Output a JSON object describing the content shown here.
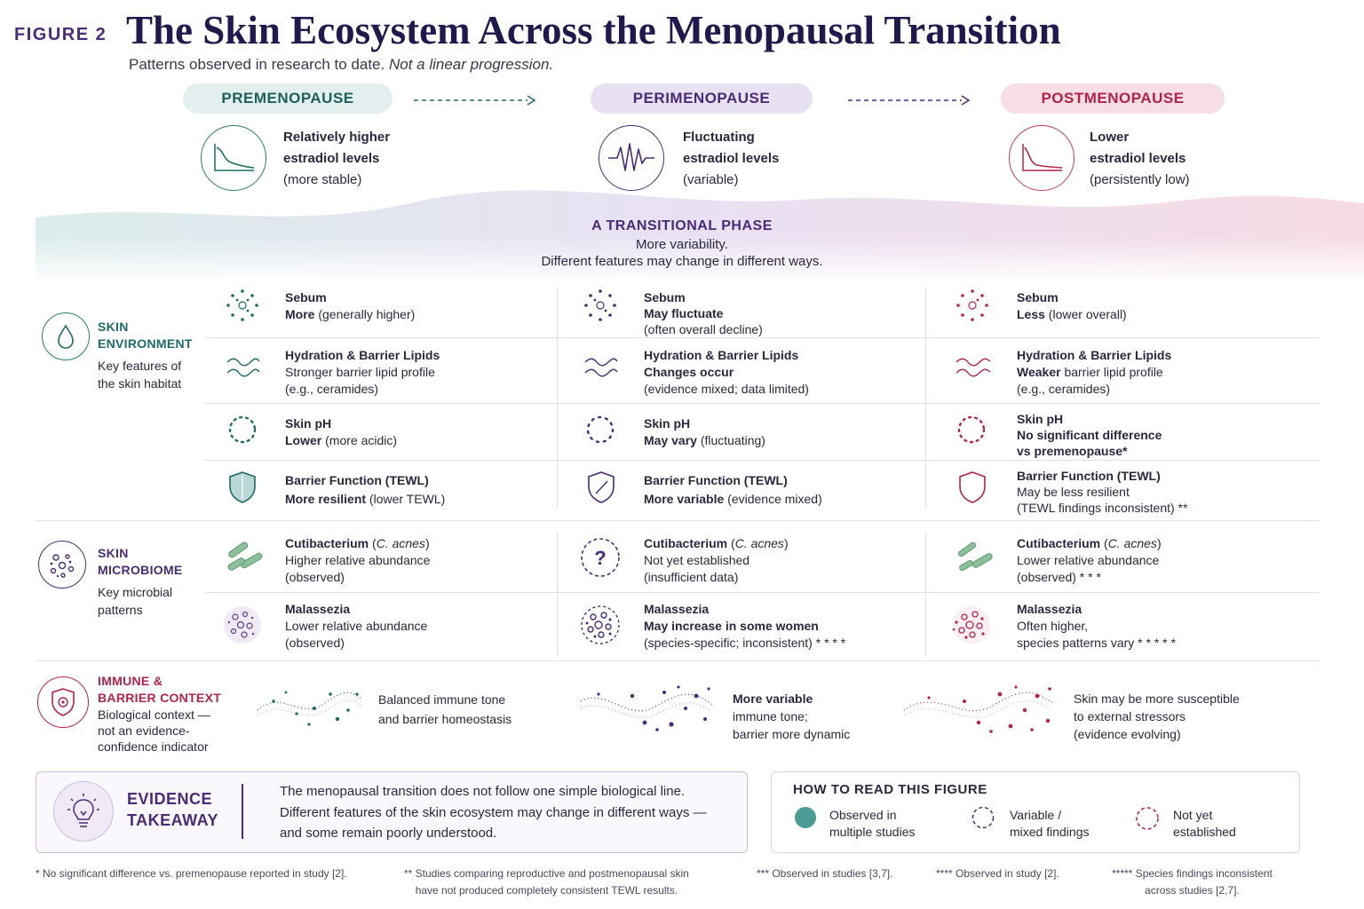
{
  "header": {
    "figure_label": "FIGURE 2",
    "title": "The Skin Ecosystem Across the Menopausal Transition",
    "subtitle_plain": "Patterns observed in research to date.",
    "subtitle_italic": "Not a linear progression."
  },
  "stages": {
    "pre": {
      "label": "PREMENOPAUSE",
      "line1": "Relatively higher",
      "line2": "estradiol levels",
      "line3": "(more stable)"
    },
    "peri": {
      "label": "PERIMENOPAUSE",
      "line1": "Fluctuating",
      "line2": "estradiol levels",
      "line3": "(variable)"
    },
    "post": {
      "label": "POSTMENOPAUSE",
      "line1": "Lower",
      "line2": "estradiol levels",
      "line3": "(persistently low)"
    }
  },
  "transition": {
    "title": "A TRANSITIONAL PHASE",
    "line1": "More variability.",
    "line2": "Different features may change in different ways."
  },
  "sections": {
    "environment": {
      "title1": "SKIN",
      "title2": "ENVIRONMENT",
      "desc1": "Key features of",
      "desc2": "the skin habitat"
    },
    "microbiome": {
      "title1": "SKIN",
      "title2": "MICROBIOME",
      "desc1": "Key microbial",
      "desc2": "patterns"
    },
    "immune": {
      "title1": "IMMUNE &",
      "title2": "BARRIER CONTEXT",
      "desc1": "Biological context —",
      "desc2": "not an evidence-",
      "desc3": "confidence indicator"
    }
  },
  "environment_rows": {
    "sebum": {
      "title": "Sebum",
      "pre": {
        "bold": "More",
        "rest": " (generally higher)"
      },
      "peri": {
        "bold": "May fluctuate",
        "line2": "(often overall decline)"
      },
      "post": {
        "bold": "Less",
        "rest": " (lower overall)"
      }
    },
    "hydration": {
      "title": "Hydration & Barrier Lipids",
      "pre": {
        "line1": "Stronger barrier lipid profile",
        "line2": "(e.g., ceramides)"
      },
      "peri": {
        "bold": "Changes occur",
        "line2": "(evidence mixed; data limited)"
      },
      "post": {
        "bold": "Weaker",
        "rest": " barrier lipid profile",
        "line2": "(e.g., ceramides)"
      }
    },
    "ph": {
      "title": "Skin pH",
      "pre": {
        "bold": "Lower",
        "rest": " (more acidic)"
      },
      "peri": {
        "bold": "May vary",
        "rest": " (fluctuating)"
      },
      "post": {
        "bold": "No significant difference",
        "bold2": "vs premenopause*"
      }
    },
    "barrier": {
      "title": "Barrier Function (TEWL)",
      "pre": {
        "bold": "More resilient",
        "rest": " (lower TEWL)"
      },
      "peri": {
        "bold": "More variable",
        "rest": " (evidence mixed)"
      },
      "post": {
        "line1": "May be less resilient",
        "line2": "(TEWL findings inconsistent) **"
      }
    }
  },
  "microbiome_rows": {
    "cutibacterium": {
      "title": "Cutibacterium",
      "species": "C. acnes",
      "pre": {
        "line1": "Higher relative abundance",
        "line2": "(observed)"
      },
      "peri": {
        "line1": "Not yet established",
        "line2": "(insufficient data)"
      },
      "post": {
        "line1": "Lower relative abundance",
        "line2": "(observed) * * *"
      }
    },
    "malassezia": {
      "title": "Malassezia",
      "pre": {
        "line1": "Lower relative abundance",
        "line2": "(observed)"
      },
      "peri": {
        "bold": "May increase in some women",
        "line2": "(species-specific; inconsistent) * * * *"
      },
      "post": {
        "line1": "Often higher,",
        "line2": "species patterns vary * * * * *"
      }
    }
  },
  "immune_row": {
    "pre": {
      "line1": "Balanced immune tone",
      "line2": "and barrier homeostasis"
    },
    "peri": {
      "bold": "More variable",
      "line2": "immune tone;",
      "line3": "barrier more dynamic"
    },
    "post": {
      "line1": "Skin may be more susceptible",
      "line2": "to external stressors",
      "line3": "(evidence evolving)"
    }
  },
  "evidence": {
    "title1": "EVIDENCE",
    "title2": "TAKEAWAY",
    "line1": "The menopausal transition does not follow one simple biological line.",
    "line2": "Different features of the skin ecosystem may change in different ways —",
    "line3": "and some remain poorly understood."
  },
  "legend": {
    "title": "HOW TO READ THIS FIGURE",
    "observed1": "Observed in",
    "observed2": "multiple studies",
    "variable1": "Variable /",
    "variable2": "mixed findings",
    "notyet1": "Not yet",
    "notyet2": "established"
  },
  "footnotes": {
    "f1": "* No significant difference vs. premenopause reported in study [2].",
    "f2a": "** Studies comparing reproductive and postmenopausal skin",
    "f2b": "have not produced completely consistent TEWL results.",
    "f3": "*** Observed in studies [3,7].",
    "f4": "**** Observed in study [2].",
    "f5a": "***** Species findings inconsistent",
    "f5b": "across studies [2,7]."
  },
  "colors": {
    "teal": "#1d6b66",
    "purple": "#4a2b78",
    "crimson": "#b3244a"
  }
}
